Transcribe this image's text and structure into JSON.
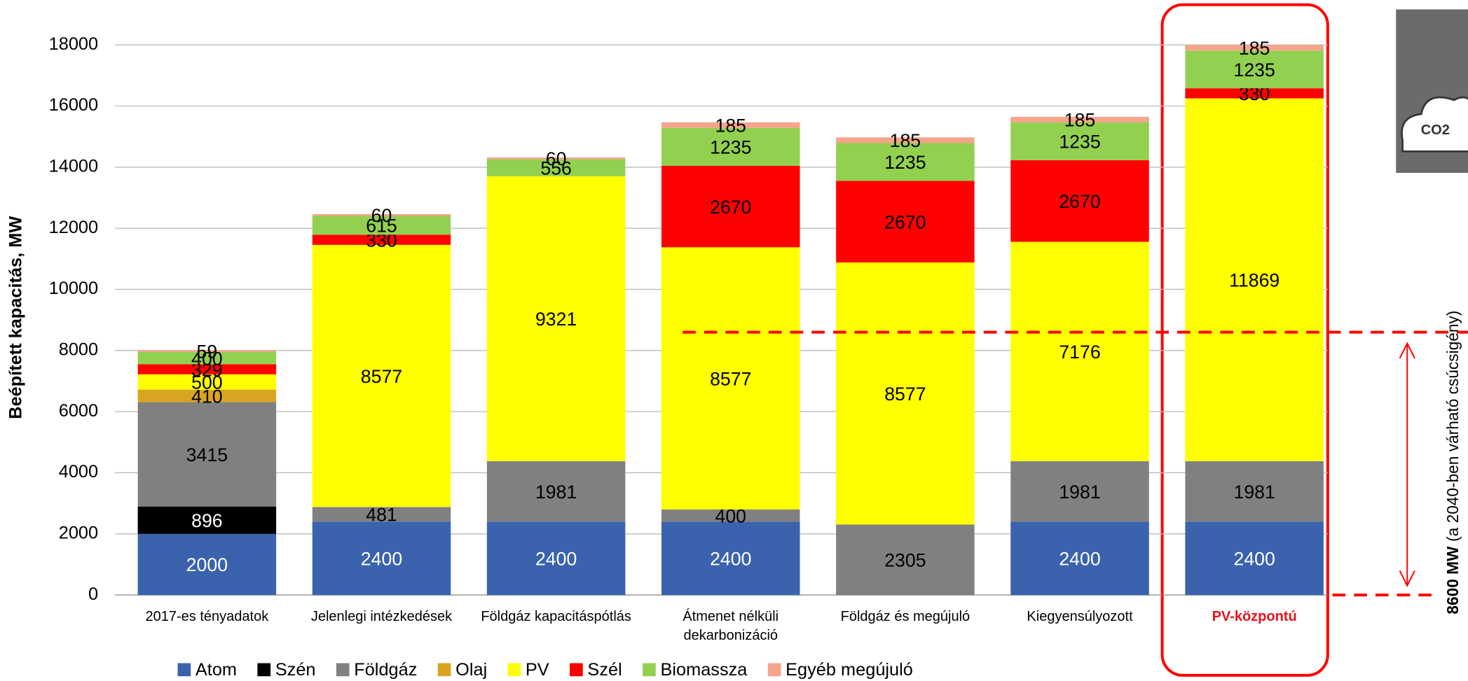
{
  "chart_data": {
    "type": "stacked_bar",
    "y_label": "Beépített kapacitás, MW",
    "categories": [
      "2017-es tényadatok",
      "Jelenlegi intézkedések",
      "Földgáz kapacitáspótlás",
      "Átmenet nélküli dekarbonizáció",
      "Földgáz és megújuló",
      "Kiegyensúlyozott",
      "PV-központú"
    ],
    "highlight_index": 6,
    "series": [
      {
        "name": "Atom",
        "color": "#3a62ad",
        "values": [
          2000,
          2400,
          2400,
          2400,
          null,
          2400,
          2400
        ]
      },
      {
        "name": "Szén",
        "color": "#000000",
        "values": [
          896,
          null,
          null,
          null,
          null,
          null,
          null
        ]
      },
      {
        "name": "Földgáz",
        "color": "#808080",
        "values": [
          3415,
          481,
          1981,
          400,
          2305,
          1981,
          1981
        ]
      },
      {
        "name": "Olaj",
        "color": "#d9a520",
        "values": [
          410,
          null,
          null,
          null,
          null,
          null,
          null
        ]
      },
      {
        "name": "PV",
        "color": "#ffff00",
        "values": [
          500,
          8577,
          9321,
          8577,
          8577,
          7176,
          11869
        ]
      },
      {
        "name": "Szél",
        "color": "#ff0000",
        "values": [
          329,
          330,
          null,
          2670,
          2670,
          2670,
          330
        ]
      },
      {
        "name": "Biomassza",
        "color": "#92d050",
        "values": [
          400,
          615,
          556,
          1235,
          1235,
          1235,
          1235
        ]
      },
      {
        "name": "Egyéb megújuló",
        "color": "#f4a58a",
        "values": [
          59,
          60,
          60,
          185,
          185,
          185,
          185
        ]
      }
    ],
    "ylim": [
      0,
      18000
    ],
    "yticks": [
      0,
      2000,
      4000,
      6000,
      8000,
      10000,
      12000,
      14000,
      16000,
      18000
    ],
    "grid": true,
    "reference_line": 8600,
    "annotation_bold": "8600 MW",
    "annotation_rest": "(a 2040-ben várható csúcsigény)",
    "icon_label": "CO2"
  }
}
